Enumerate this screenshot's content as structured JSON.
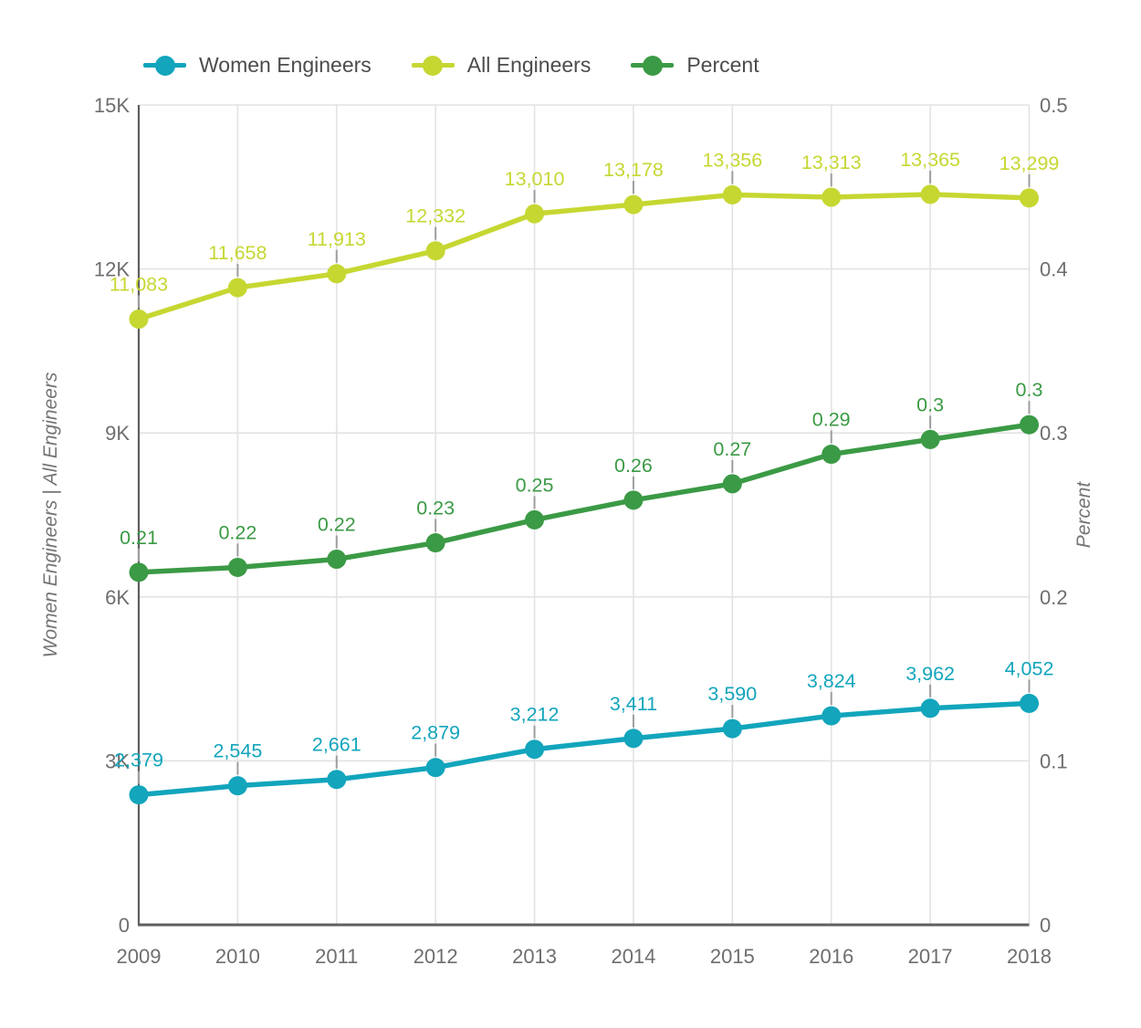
{
  "chart_data": {
    "type": "line",
    "title": "",
    "categories": [
      "2009",
      "2010",
      "2011",
      "2012",
      "2013",
      "2014",
      "2015",
      "2016",
      "2017",
      "2018"
    ],
    "series": [
      {
        "name": "Women Engineers",
        "axis": "left",
        "color": "#12a5bc",
        "values": [
          2379,
          2545,
          2661,
          2879,
          3212,
          3411,
          3590,
          3824,
          3962,
          4052
        ],
        "labels": [
          "2,379",
          "2,545",
          "2,661",
          "2,879",
          "3,212",
          "3,411",
          "3,590",
          "3,824",
          "3,962",
          "4,052"
        ]
      },
      {
        "name": "All Engineers",
        "axis": "left",
        "color": "#c6d732",
        "values": [
          11083,
          11658,
          11913,
          12332,
          13010,
          13178,
          13356,
          13313,
          13365,
          13299
        ],
        "labels": [
          "11,083",
          "11,658",
          "11,913",
          "12,332",
          "13,010",
          "13,178",
          "13,356",
          "13,313",
          "13,365",
          "13,299"
        ]
      },
      {
        "name": "Percent",
        "axis": "right",
        "color": "#3b9a45",
        "values": [
          0.215,
          0.218,
          0.223,
          0.233,
          0.247,
          0.259,
          0.269,
          0.287,
          0.296,
          0.305
        ],
        "labels": [
          "0.21",
          "0.22",
          "0.22",
          "0.23",
          "0.25",
          "0.26",
          "0.27",
          "0.29",
          "0.3",
          "0.3"
        ]
      }
    ],
    "left_axis": {
      "title": "Women Engineers | All Engineers",
      "ticks": [
        "0",
        "3K",
        "6K",
        "9K",
        "12K",
        "15K"
      ],
      "range": [
        0,
        15000
      ]
    },
    "right_axis": {
      "title": "Percent",
      "ticks": [
        "0",
        "0.1",
        "0.2",
        "0.3",
        "0.4",
        "0.5"
      ],
      "range": [
        0,
        0.5
      ]
    },
    "x_axis": {
      "title": "",
      "ticks": [
        "2009",
        "2010",
        "2011",
        "2012",
        "2013",
        "2014",
        "2015",
        "2016",
        "2017",
        "2018"
      ]
    },
    "legend_position": "top",
    "grid": true,
    "colors": {
      "grid_line": "#e3e3e3",
      "axis_line": "#5f5f5f",
      "tick_text": "#6e6e6e",
      "axis_title_text": "#757575",
      "leader_line": "#9e9e9e",
      "legend_text": "#4c4c4c",
      "background": "#ffffff"
    }
  }
}
